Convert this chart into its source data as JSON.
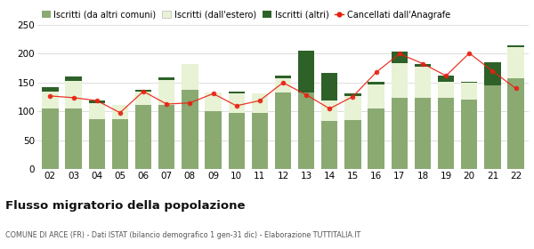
{
  "years": [
    "02",
    "03",
    "04",
    "05",
    "06",
    "07",
    "08",
    "09",
    "10",
    "11",
    "12",
    "13",
    "14",
    "15",
    "16",
    "17",
    "18",
    "19",
    "20",
    "21",
    "22"
  ],
  "iscritti_altri_comuni": [
    105,
    105,
    87,
    87,
    112,
    112,
    138,
    100,
    97,
    97,
    133,
    133,
    84,
    85,
    105,
    124,
    124,
    124,
    120,
    145,
    157
  ],
  "iscritti_estero": [
    30,
    48,
    27,
    24,
    23,
    42,
    45,
    33,
    35,
    35,
    25,
    0,
    35,
    42,
    42,
    60,
    53,
    27,
    30,
    0,
    55
  ],
  "iscritti_altri": [
    8,
    7,
    5,
    0,
    3,
    5,
    0,
    0,
    3,
    0,
    5,
    72,
    48,
    5,
    5,
    20,
    5,
    12,
    2,
    40,
    3
  ],
  "cancellati": [
    127,
    124,
    119,
    98,
    135,
    113,
    115,
    131,
    110,
    119,
    150,
    129,
    105,
    126,
    168,
    200,
    183,
    162,
    201,
    170,
    140
  ],
  "color_altri_comuni": "#8aaa72",
  "color_estero": "#e8f2d5",
  "color_altri": "#2d6128",
  "color_cancellati": "#e82010",
  "ylim": [
    0,
    250
  ],
  "yticks": [
    0,
    50,
    100,
    150,
    200,
    250
  ],
  "title": "Flusso migratorio della popolazione",
  "subtitle": "COMUNE DI ARCE (FR) - Dati ISTAT (bilancio demografico 1 gen-31 dic) - Elaborazione TUTTITALIA.IT",
  "legend_labels": [
    "Iscritti (da altri comuni)",
    "Iscritti (dall'estero)",
    "Iscritti (altri)",
    "Cancellati dall'Anagrafe"
  ],
  "bg_color": "#ffffff",
  "grid_color": "#d0d0d0"
}
